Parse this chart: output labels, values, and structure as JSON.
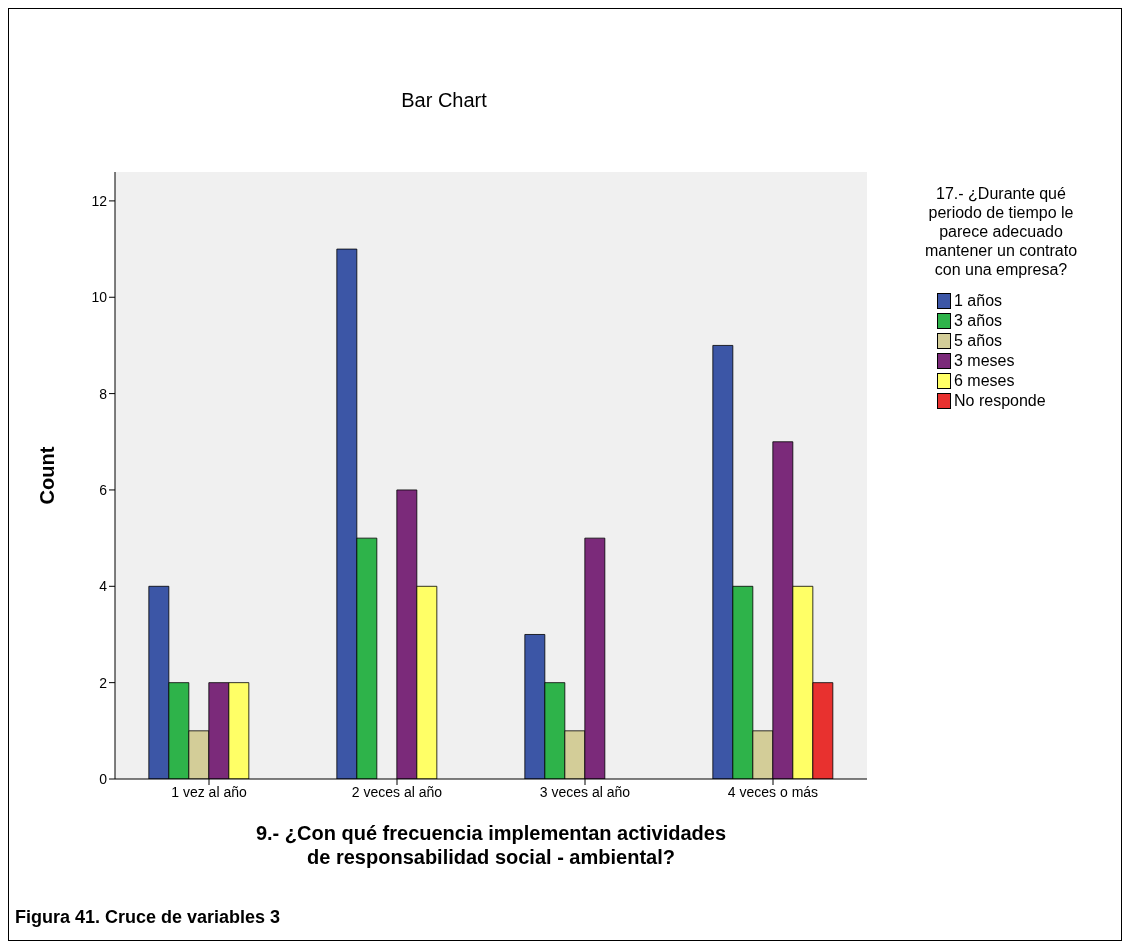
{
  "chart_data": {
    "type": "bar",
    "title": "Bar Chart",
    "xlabel": "9.- ¿Con qué frecuencia implementan actividades\nde responsabilidad social - ambiental?",
    "ylabel": "Count",
    "legend_title": "17.- ¿Durante qué\nperiodo de tiempo le\nparece adecuado\nmantener un contrato\ncon una empresa?",
    "annotations": [
      "Figura 41. Cruce de variables 3"
    ],
    "categories": [
      "1 vez al año",
      "2 veces al año",
      "3 veces al año",
      "4 veces o más"
    ],
    "series": [
      {
        "name": "1 años",
        "color": "#3c56a6",
        "values": [
          4,
          11,
          3,
          9
        ]
      },
      {
        "name": "3 años",
        "color": "#2eb34a",
        "values": [
          2,
          5,
          2,
          4
        ]
      },
      {
        "name": "5 años",
        "color": "#d3cd98",
        "values": [
          1,
          null,
          1,
          1
        ]
      },
      {
        "name": "3 meses",
        "color": "#7b2a7a",
        "values": [
          2,
          6,
          5,
          7
        ]
      },
      {
        "name": "6 meses",
        "color": "#ffff66",
        "values": [
          2,
          4,
          null,
          4
        ]
      },
      {
        "name": "No responde",
        "color": "#e8312f",
        "values": [
          null,
          null,
          null,
          2
        ]
      }
    ],
    "ylim": [
      0,
      12.6
    ],
    "yticks": [
      0,
      2,
      4,
      6,
      8,
      10,
      12
    ],
    "grid": false,
    "legend": "right"
  }
}
